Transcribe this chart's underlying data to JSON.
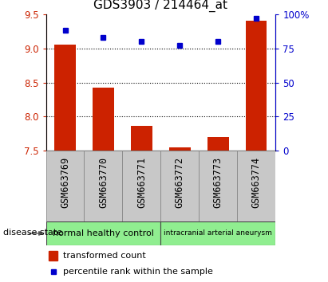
{
  "title": "GDS3903 / 214464_at",
  "samples": [
    "GSM663769",
    "GSM663770",
    "GSM663771",
    "GSM663772",
    "GSM663773",
    "GSM663774"
  ],
  "transformed_count": [
    9.05,
    8.43,
    7.87,
    7.55,
    7.7,
    9.4
  ],
  "percentile_rank": [
    88,
    83,
    80,
    77,
    80,
    97
  ],
  "bar_color": "#cc2200",
  "dot_color": "#0000cc",
  "ylim_left": [
    7.5,
    9.5
  ],
  "ylim_right": [
    0,
    100
  ],
  "yticks_left": [
    7.5,
    8.0,
    8.5,
    9.0,
    9.5
  ],
  "yticks_right": [
    0,
    25,
    50,
    75,
    100
  ],
  "ytick_labels_right": [
    "0",
    "25",
    "50",
    "75",
    "100%"
  ],
  "grid_lines": [
    9.0,
    8.5,
    8.0
  ],
  "group1_label": "normal healthy control",
  "group1_count": 3,
  "group2_label": "intracranial arterial aneurysm",
  "group2_count": 3,
  "group_color": "#90ee90",
  "gray_color": "#c8c8c8",
  "disease_state_label": "disease state",
  "legend_bar_label": "transformed count",
  "legend_dot_label": "percentile rank within the sample",
  "title_fontsize": 11,
  "tick_fontsize": 8.5,
  "label_fontsize": 8,
  "bar_width": 0.55
}
